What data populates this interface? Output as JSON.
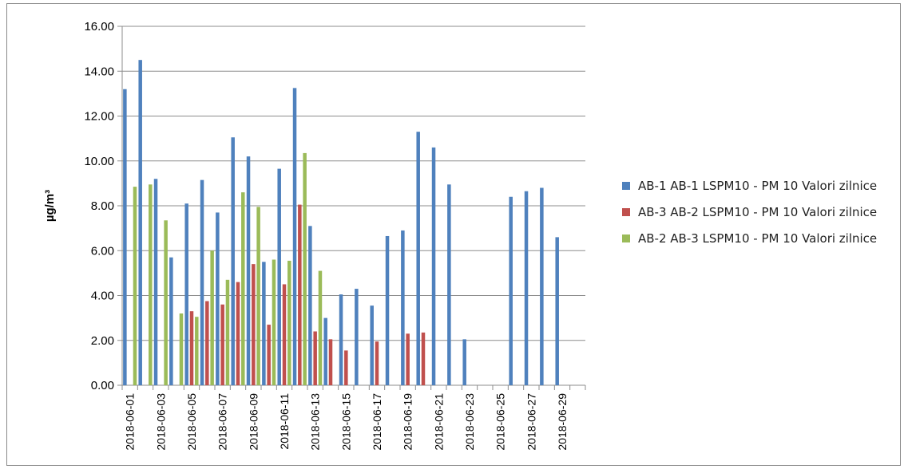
{
  "chart_data": {
    "type": "bar",
    "ylabel": "µg/m³",
    "ylim": [
      0,
      16
    ],
    "y_ticks": [
      "0.00",
      "2.00",
      "4.00",
      "6.00",
      "8.00",
      "10.00",
      "12.00",
      "14.00",
      "16.00"
    ],
    "grid": true,
    "legend_position": "right",
    "categories": [
      "2018-06-01",
      "2018-06-02",
      "2018-06-03",
      "2018-06-04",
      "2018-06-05",
      "2018-06-06",
      "2018-06-07",
      "2018-06-08",
      "2018-06-09",
      "2018-06-10",
      "2018-06-11",
      "2018-06-12",
      "2018-06-13",
      "2018-06-14",
      "2018-06-15",
      "2018-06-16",
      "2018-06-17",
      "2018-06-18",
      "2018-06-19",
      "2018-06-20",
      "2018-06-21",
      "2018-06-22",
      "2018-06-23",
      "2018-06-24",
      "2018-06-25",
      "2018-06-26",
      "2018-06-27",
      "2018-06-28",
      "2018-06-29",
      "2018-06-30"
    ],
    "x_tick_labels": [
      "2018-06-01",
      "2018-06-03",
      "2018-06-05",
      "2018-06-07",
      "2018-06-09",
      "2018-06-11",
      "2018-06-13",
      "2018-06-15",
      "2018-06-17",
      "2018-06-19",
      "2018-06-21",
      "2018-06-23",
      "2018-06-25",
      "2018-06-27",
      "2018-06-29"
    ],
    "series": [
      {
        "name": "AB-1 AB-1 LSPM10 - PM 10 Valori zilnice",
        "color": "#4f81bd",
        "values": [
          13.2,
          14.5,
          9.2,
          5.7,
          8.1,
          9.15,
          7.7,
          11.05,
          10.2,
          5.5,
          9.65,
          13.25,
          7.1,
          3.0,
          4.05,
          4.3,
          3.55,
          6.65,
          6.9,
          11.3,
          10.6,
          8.95,
          2.05,
          null,
          null,
          8.4,
          8.65,
          8.8,
          6.6,
          null
        ]
      },
      {
        "name": "AB-3 AB-2 LSPM10 - PM 10 Valori zilnice",
        "color": "#c0504d",
        "values": [
          null,
          null,
          null,
          null,
          3.3,
          3.75,
          3.6,
          4.6,
          5.4,
          2.7,
          4.5,
          8.05,
          2.4,
          2.05,
          1.55,
          null,
          1.95,
          null,
          2.3,
          2.35,
          null,
          null,
          null,
          null,
          null,
          null,
          null,
          null,
          null,
          null
        ]
      },
      {
        "name": "AB-2 AB-3 LSPM10 - PM 10 Valori zilnice",
        "color": "#9bbb59",
        "values": [
          8.85,
          8.95,
          7.35,
          3.2,
          3.05,
          6.0,
          4.7,
          8.6,
          7.95,
          5.6,
          5.55,
          10.35,
          5.1,
          null,
          null,
          null,
          null,
          null,
          null,
          null,
          null,
          null,
          null,
          null,
          null,
          null,
          null,
          null,
          null,
          null
        ]
      }
    ]
  }
}
